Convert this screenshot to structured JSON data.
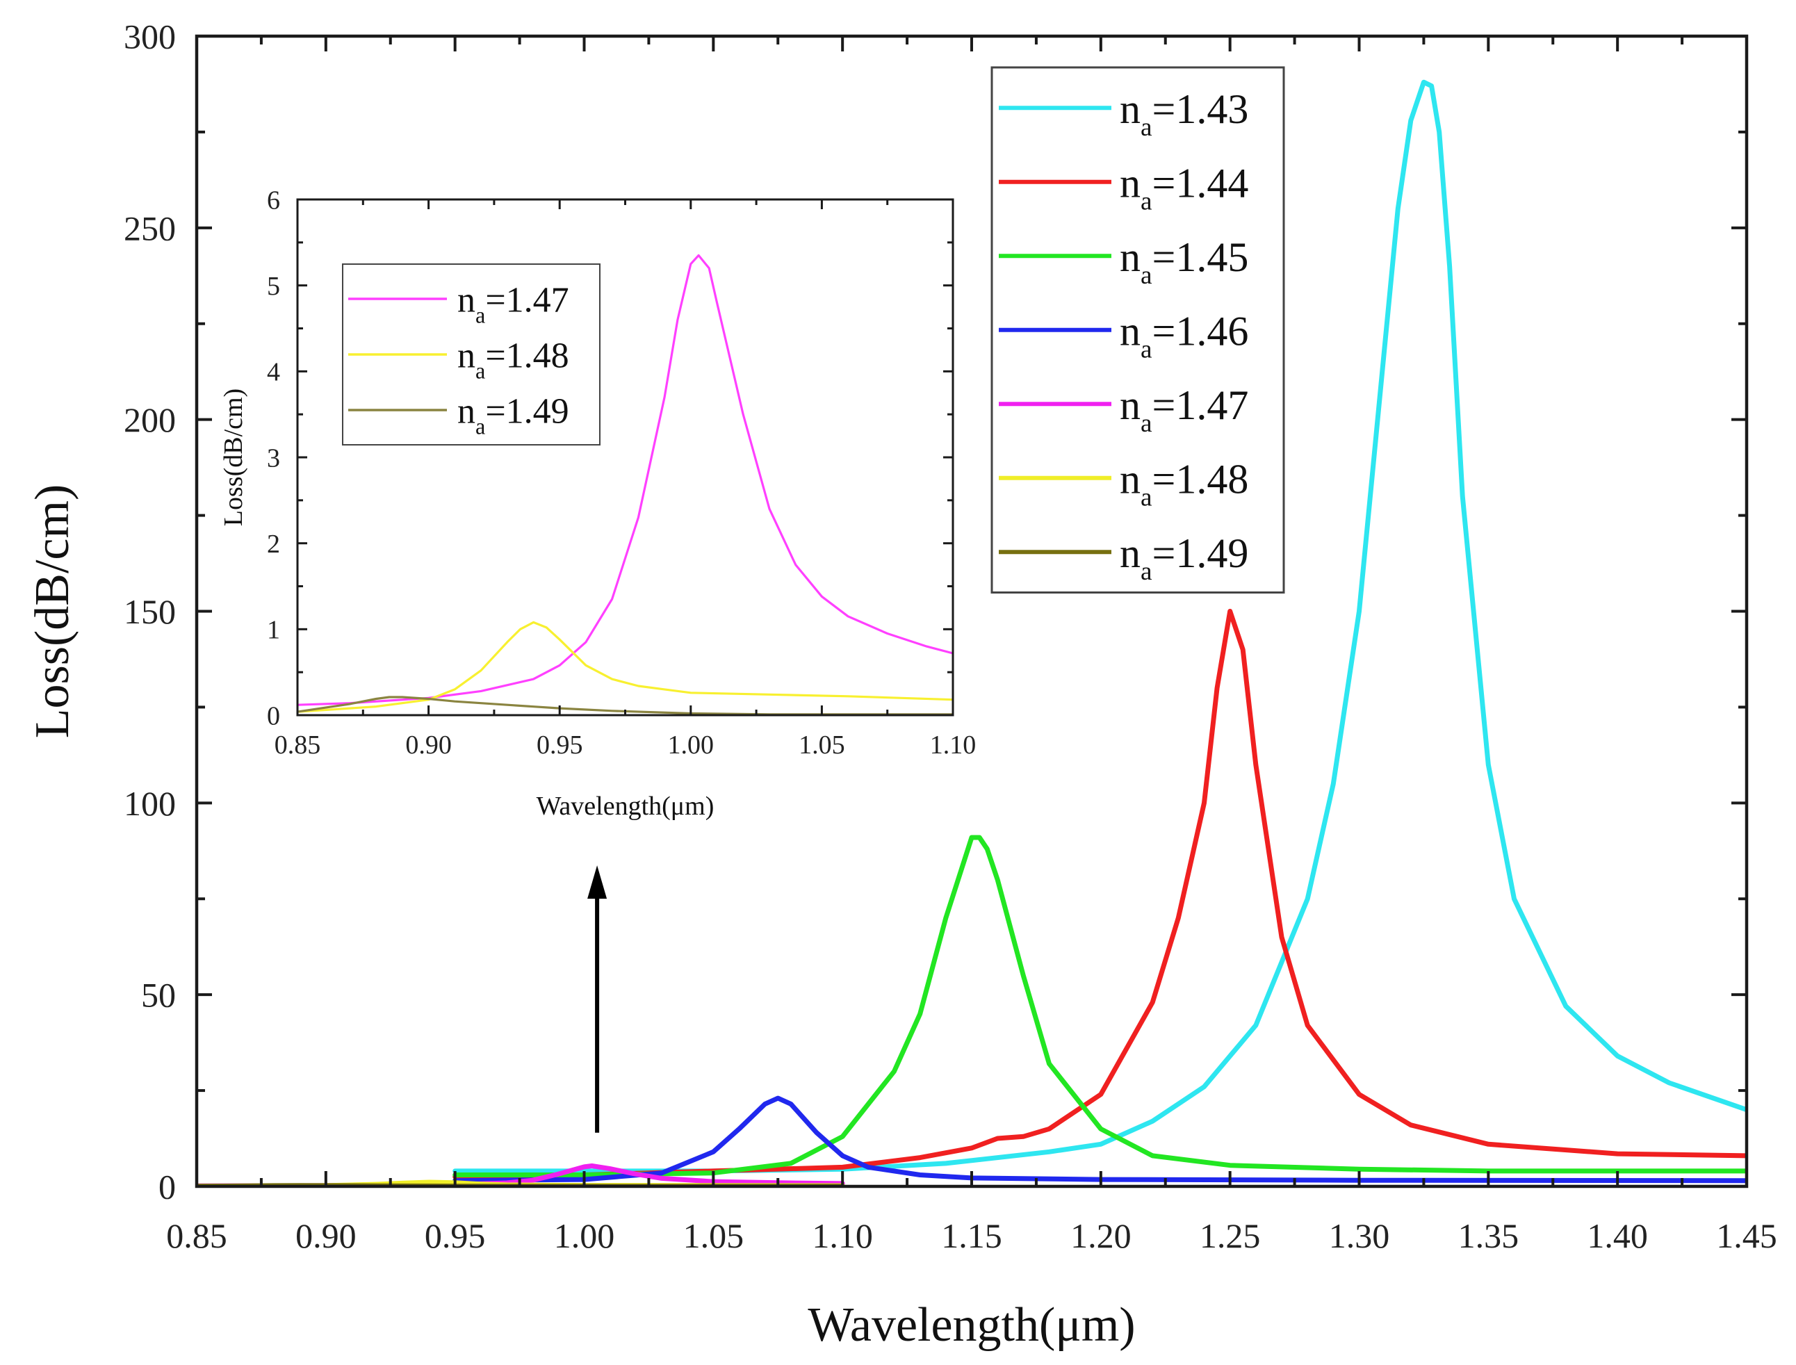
{
  "chart_data": [
    {
      "id": "main",
      "type": "line",
      "title": "",
      "xlabel": "Wavelength(μm)",
      "ylabel": "Loss(dB/cm)",
      "xlim": [
        0.85,
        1.45
      ],
      "ylim": [
        0,
        300
      ],
      "xticks": [
        "0.85",
        "0.90",
        "0.95",
        "1.00",
        "1.05",
        "1.10",
        "1.15",
        "1.20",
        "1.25",
        "1.30",
        "1.35",
        "1.40",
        "1.45"
      ],
      "yticks": [
        "0",
        "50",
        "100",
        "150",
        "200",
        "250",
        "300"
      ],
      "grid": false,
      "legend_position": "top-right",
      "series": [
        {
          "name": "1.43",
          "color": "#2ee6f0",
          "x": [
            0.95,
            1.0,
            1.05,
            1.1,
            1.14,
            1.18,
            1.2,
            1.22,
            1.24,
            1.26,
            1.28,
            1.29,
            1.3,
            1.31,
            1.315,
            1.32,
            1.325,
            1.328,
            1.331,
            1.335,
            1.34,
            1.35,
            1.36,
            1.38,
            1.4,
            1.42,
            1.45
          ],
          "values": [
            4,
            4,
            4,
            4.5,
            6,
            9,
            11,
            17,
            26,
            42,
            75,
            105,
            150,
            220,
            255,
            278,
            288,
            287,
            275,
            240,
            180,
            110,
            75,
            47,
            34,
            27,
            20
          ]
        },
        {
          "name": "1.44",
          "color": "#f02020",
          "x": [
            0.95,
            1.0,
            1.05,
            1.1,
            1.13,
            1.15,
            1.16,
            1.17,
            1.18,
            1.2,
            1.22,
            1.23,
            1.24,
            1.245,
            1.25,
            1.255,
            1.26,
            1.27,
            1.28,
            1.3,
            1.32,
            1.35,
            1.4,
            1.45
          ],
          "values": [
            2.5,
            3,
            4,
            5,
            7.5,
            10,
            12.5,
            13,
            15,
            24,
            48,
            70,
            100,
            130,
            150,
            140,
            110,
            65,
            42,
            24,
            16,
            11,
            8.5,
            8
          ]
        },
        {
          "name": "1.45",
          "color": "#22e622",
          "x": [
            0.95,
            1.0,
            1.05,
            1.08,
            1.1,
            1.12,
            1.13,
            1.14,
            1.15,
            1.153,
            1.156,
            1.16,
            1.17,
            1.18,
            1.2,
            1.22,
            1.25,
            1.3,
            1.35,
            1.45
          ],
          "values": [
            3,
            3,
            3.5,
            6,
            13,
            30,
            45,
            70,
            91,
            91,
            88,
            80,
            55,
            32,
            15,
            8,
            5.5,
            4.5,
            4,
            4
          ]
        },
        {
          "name": "1.46",
          "color": "#2028ee",
          "x": [
            0.95,
            1.0,
            1.03,
            1.05,
            1.06,
            1.07,
            1.075,
            1.08,
            1.09,
            1.1,
            1.11,
            1.13,
            1.15,
            1.2,
            1.3,
            1.45
          ],
          "values": [
            1.5,
            1.8,
            3.5,
            9,
            15,
            21.5,
            23,
            21.5,
            14,
            8,
            5,
            3,
            2.2,
            1.8,
            1.6,
            1.5
          ]
        },
        {
          "name": "1.47",
          "color": "#f020f0",
          "x": [
            0.85,
            0.9,
            0.95,
            0.97,
            0.98,
            0.99,
            1.0,
            1.003,
            1.01,
            1.02,
            1.03,
            1.05,
            1.075,
            1.1
          ],
          "values": [
            0.12,
            0.2,
            0.45,
            0.9,
            1.6,
            3.2,
            5.1,
            5.35,
            4.6,
            3.2,
            2.1,
            1.25,
            0.95,
            0.75
          ]
        },
        {
          "name": "1.48",
          "color": "#f0ee28",
          "x": [
            0.85,
            0.9,
            0.92,
            0.93,
            0.94,
            0.95,
            0.96,
            0.97,
            1.0,
            1.05,
            1.1
          ],
          "values": [
            0.05,
            0.2,
            0.55,
            0.85,
            1.08,
            0.95,
            0.6,
            0.38,
            0.25,
            0.22,
            0.18
          ]
        },
        {
          "name": "1.49",
          "color": "#777010",
          "x": [
            0.85,
            0.87,
            0.88,
            0.89,
            0.9,
            0.92,
            0.95,
            0.97,
            1.0,
            1.05,
            1.1
          ],
          "values": [
            0.05,
            0.12,
            0.2,
            0.22,
            0.2,
            0.14,
            0.08,
            0.05,
            0.03,
            0.02,
            0.02
          ]
        }
      ],
      "annotation": {
        "type": "arrow",
        "x": 1.005,
        "from_y": 14,
        "to_y": 83
      }
    },
    {
      "id": "inset",
      "type": "line",
      "title": "",
      "xlabel": "Wavelength(μm)",
      "ylabel": "Loss(dB/cm)",
      "xlim": [
        0.85,
        1.1
      ],
      "ylim": [
        0,
        6
      ],
      "xticks": [
        "0.85",
        "0.90",
        "0.95",
        "1.00",
        "1.05",
        "1.10"
      ],
      "yticks": [
        "0",
        "1",
        "2",
        "3",
        "4",
        "5",
        "6"
      ],
      "grid": false,
      "legend_position": "top-left",
      "series": [
        {
          "name": "1.47",
          "color": "#ff40ff",
          "x": [
            0.85,
            0.87,
            0.9,
            0.92,
            0.94,
            0.95,
            0.96,
            0.97,
            0.98,
            0.99,
            0.995,
            1.0,
            1.003,
            1.007,
            1.01,
            1.02,
            1.03,
            1.04,
            1.05,
            1.06,
            1.075,
            1.09,
            1.1
          ],
          "values": [
            0.12,
            0.14,
            0.2,
            0.28,
            0.42,
            0.58,
            0.85,
            1.35,
            2.3,
            3.7,
            4.6,
            5.25,
            5.35,
            5.2,
            4.8,
            3.5,
            2.4,
            1.75,
            1.38,
            1.15,
            0.95,
            0.8,
            0.72
          ]
        },
        {
          "name": "1.48",
          "color": "#f8f030",
          "x": [
            0.85,
            0.88,
            0.9,
            0.91,
            0.92,
            0.93,
            0.935,
            0.94,
            0.945,
            0.95,
            0.96,
            0.97,
            0.98,
            0.99,
            1.0,
            1.03,
            1.06,
            1.1
          ],
          "values": [
            0.04,
            0.1,
            0.18,
            0.3,
            0.52,
            0.85,
            1.0,
            1.08,
            1.02,
            0.88,
            0.58,
            0.42,
            0.34,
            0.3,
            0.26,
            0.24,
            0.22,
            0.18
          ]
        },
        {
          "name": "1.49",
          "color": "#8a8440",
          "x": [
            0.85,
            0.87,
            0.88,
            0.885,
            0.89,
            0.9,
            0.91,
            0.93,
            0.95,
            0.97,
            1.0,
            1.03,
            1.06,
            1.1
          ],
          "values": [
            0.04,
            0.13,
            0.19,
            0.21,
            0.21,
            0.19,
            0.16,
            0.12,
            0.08,
            0.05,
            0.02,
            0.01,
            0.01,
            0.01
          ]
        }
      ]
    }
  ],
  "legend_prefix": "n",
  "legend_sub": "a",
  "legend_eq": "="
}
